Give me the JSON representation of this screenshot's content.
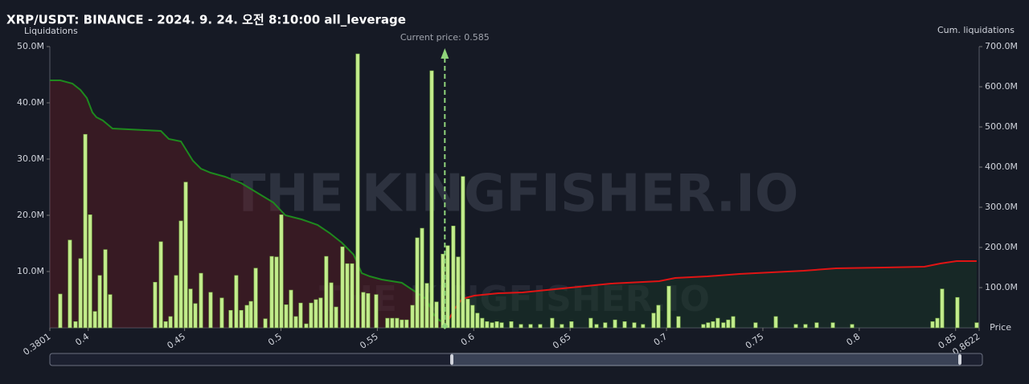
{
  "chart_data": {
    "type": "liquidation",
    "title": "XRP/USDT: BINANCE - 2024. 9. 24. 오전 8:10:00 all_leverage",
    "y_label": "Liquidations",
    "y2_label": "Cum. liquidations",
    "x_label": "Price",
    "watermark": "THE KINGFISHER.IO",
    "current_price": {
      "value": 0.585,
      "label": "Current price: 0.585"
    },
    "xlim": [
      0.3801,
      0.8622
    ],
    "xticks": [
      0.3801,
      0.4,
      0.45,
      0.5,
      0.55,
      0.6,
      0.65,
      0.7,
      0.75,
      0.8,
      0.85,
      0.8622
    ],
    "ylim": [
      0,
      50000000
    ],
    "yticks": [
      {
        "value": 10000000,
        "label": "10.0M"
      },
      {
        "value": 20000000,
        "label": "20.0M"
      },
      {
        "value": 30000000,
        "label": "30.0M"
      },
      {
        "value": 40000000,
        "label": "40.0M"
      },
      {
        "value": 50000000,
        "label": "50.0M"
      }
    ],
    "y2lim": [
      0,
      700000000
    ],
    "y2ticks": [
      {
        "value": 100000000,
        "label": "100.0M"
      },
      {
        "value": 200000000,
        "label": "200.0M"
      },
      {
        "value": 300000000,
        "label": "300.0M"
      },
      {
        "value": 400000000,
        "label": "400.0M"
      },
      {
        "value": 500000000,
        "label": "500.0M"
      },
      {
        "value": 600000000,
        "label": "600.0M"
      },
      {
        "value": 700000000,
        "label": "700.0M"
      }
    ],
    "series": [
      {
        "type": "bar",
        "color": "#c2ec8c",
        "x": [
          0.3855,
          0.3905,
          0.3934,
          0.396,
          0.3985,
          0.401,
          0.4035,
          0.406,
          0.4089,
          0.4114,
          0.4347,
          0.4377,
          0.4402,
          0.4427,
          0.4456,
          0.4481,
          0.4506,
          0.4531,
          0.4556,
          0.4585,
          0.4635,
          0.4693,
          0.4739,
          0.4768,
          0.4794,
          0.4823,
          0.4844,
          0.4869,
          0.4919,
          0.4952,
          0.4977,
          0.5002,
          0.5027,
          0.5052,
          0.5077,
          0.5102,
          0.5131,
          0.5156,
          0.5181,
          0.5206,
          0.5235,
          0.5261,
          0.5286,
          0.5319,
          0.5344,
          0.5369,
          0.5398,
          0.5427,
          0.5452,
          0.5494,
          0.5552,
          0.5577,
          0.5602,
          0.5627,
          0.5652,
          0.5682,
          0.5707,
          0.5732,
          0.5757,
          0.5782,
          0.5807,
          0.584,
          0.5865,
          0.5894,
          0.5919,
          0.5944,
          0.5969,
          0.5994,
          0.6019,
          0.6044,
          0.6069,
          0.6095,
          0.612,
          0.6145,
          0.6195,
          0.6245,
          0.6295,
          0.6345,
          0.6407,
          0.6457,
          0.6507,
          0.6607,
          0.6637,
          0.6682,
          0.6733,
          0.6783,
          0.6833,
          0.6878,
          0.6933,
          0.6958,
          0.7012,
          0.7062,
          0.7191,
          0.7216,
          0.7241,
          0.7266,
          0.7295,
          0.732,
          0.7346,
          0.7462,
          0.7567,
          0.7671,
          0.7721,
          0.7779,
          0.7863,
          0.7963,
          0.838,
          0.8405,
          0.843,
          0.8509,
          0.8609
        ],
        "values": [
          6000000,
          15600000,
          1100000,
          12300000,
          34400000,
          20100000,
          2900000,
          9300000,
          13900000,
          5900000,
          8100000,
          15300000,
          1100000,
          2000000,
          9300000,
          19000000,
          25900000,
          6900000,
          4300000,
          9700000,
          6300000,
          5300000,
          3100000,
          9300000,
          3100000,
          4000000,
          4700000,
          10600000,
          1600000,
          12700000,
          12600000,
          20100000,
          4100000,
          6700000,
          2000000,
          4400000,
          700000,
          4400000,
          5000000,
          5300000,
          12700000,
          8000000,
          3700000,
          14400000,
          11400000,
          11400000,
          48700000,
          6300000,
          6100000,
          5900000,
          1700000,
          1700000,
          1700000,
          1400000,
          1400000,
          4000000,
          16000000,
          17700000,
          7900000,
          45700000,
          4600000,
          13100000,
          14600000,
          18100000,
          12600000,
          26900000,
          5100000,
          4000000,
          2600000,
          1700000,
          1100000,
          900000,
          1100000,
          900000,
          1100000,
          600000,
          600000,
          600000,
          1700000,
          600000,
          1100000,
          1700000,
          600000,
          900000,
          1400000,
          1100000,
          900000,
          600000,
          2600000,
          4000000,
          7400000,
          2000000,
          600000,
          900000,
          1100000,
          1700000,
          900000,
          1400000,
          2000000,
          900000,
          2000000,
          600000,
          600000,
          900000,
          900000,
          600000,
          1100000,
          1700000,
          6900000,
          5400000,
          900000
        ]
      },
      {
        "type": "area",
        "axis": "y2",
        "color": "#1e8a1e",
        "fill": "rgba(110,25,35,0.38)",
        "x": [
          0.3801,
          0.3855,
          0.3918,
          0.396,
          0.3993,
          0.4022,
          0.4043,
          0.4076,
          0.4126,
          0.4377,
          0.4418,
          0.4481,
          0.4543,
          0.4585,
          0.4635,
          0.471,
          0.4794,
          0.4877,
          0.496,
          0.5023,
          0.5106,
          0.519,
          0.5252,
          0.5315,
          0.5377,
          0.5419,
          0.5461,
          0.5523,
          0.5627,
          0.569,
          0.5753,
          0.5794,
          0.5828
        ],
        "values": [
          616000000,
          616000000,
          608000000,
          592000000,
          572000000,
          536000000,
          524000000,
          516000000,
          496000000,
          490000000,
          470000000,
          464000000,
          416000000,
          396000000,
          386000000,
          376000000,
          360000000,
          336000000,
          312000000,
          280000000,
          270000000,
          256000000,
          236000000,
          212000000,
          182000000,
          136000000,
          128000000,
          120000000,
          112000000,
          92000000,
          72000000,
          32000000,
          16000000
        ]
      },
      {
        "type": "area",
        "axis": "y2",
        "color": "#e01414",
        "fill": "rgba(25,70,40,0.35)",
        "x": [
          0.5857,
          0.5899,
          0.594,
          0.6003,
          0.6128,
          0.6253,
          0.642,
          0.6545,
          0.6712,
          0.6962,
          0.7045,
          0.7212,
          0.7379,
          0.7546,
          0.7712,
          0.7879,
          0.8129,
          0.8338,
          0.8421,
          0.8505,
          0.8609
        ],
        "values": [
          8000000,
          46000000,
          72000000,
          80000000,
          86000000,
          88000000,
          96000000,
          102000000,
          110000000,
          116000000,
          124000000,
          128000000,
          134000000,
          138000000,
          142000000,
          148000000,
          150000000,
          152000000,
          160000000,
          166000000,
          166000000
        ]
      }
    ]
  }
}
